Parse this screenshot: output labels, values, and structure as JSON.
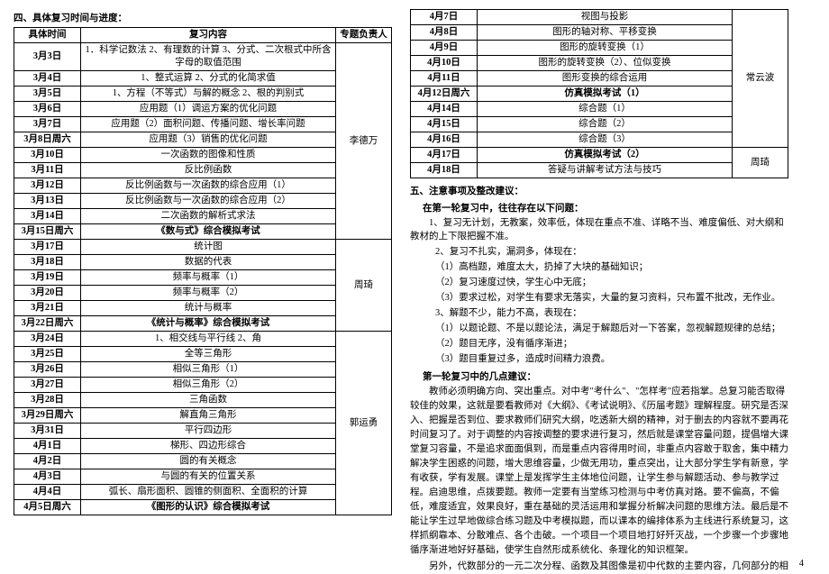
{
  "section4_title": "四、具体复习时间与进度：",
  "table_headers": {
    "date": "具体时间",
    "content": "复习内容",
    "owner": "专题负责人"
  },
  "tableA_owners": [
    "李德万",
    "周琦",
    "郭运勇"
  ],
  "tableA_o1": [
    {
      "d": "3月3日",
      "c": "1．科学记数法 2、有理数的计算 3、分式、二次根式中所含字母的取值范围",
      "b": false
    },
    {
      "d": "3月4日",
      "c": "1、整式运算 2、分式的化简求值",
      "b": false
    },
    {
      "d": "3月5日",
      "c": "1、方程（不等式）与解的概念 2、根的判别式",
      "b": false
    },
    {
      "d": "3月6日",
      "c": "应用题（1）调运方案的优化问题",
      "b": false
    },
    {
      "d": "3月7日",
      "c": "应用题（2）面积问题、传播问题、增长率问题",
      "b": false
    },
    {
      "d": "3月8日周六",
      "c": "应用题（3）销售的优化问题",
      "b": false
    },
    {
      "d": "3月10日",
      "c": "一次函数的图像和性质",
      "b": false
    },
    {
      "d": "3月11日",
      "c": "反比例函数",
      "b": false
    },
    {
      "d": "3月12日",
      "c": "反比例函数与一次函数的综合应用（1）",
      "b": false
    },
    {
      "d": "3月13日",
      "c": "反比例函数与一次函数的综合应用（2）",
      "b": false
    },
    {
      "d": "3月14日",
      "c": "二次函数的解析式求法",
      "b": false
    },
    {
      "d": "3月15日周六",
      "c": "《数与式》综合模拟考试",
      "b": true
    }
  ],
  "tableA_o2": [
    {
      "d": "3月17日",
      "c": "统计图",
      "b": false
    },
    {
      "d": "3月18日",
      "c": "数据的代表",
      "b": false
    },
    {
      "d": "3月19日",
      "c": "频率与概率（1）",
      "b": false
    },
    {
      "d": "3月20日",
      "c": "频率与概率（2）",
      "b": false
    },
    {
      "d": "3月21日",
      "c": "统计与概率",
      "b": false
    },
    {
      "d": "3月22日周六",
      "c": "《统计与概率》综合模拟考试",
      "b": true
    }
  ],
  "tableA_o3": [
    {
      "d": "3月24日",
      "c": "1、相交线与平行线 2、角",
      "b": false
    },
    {
      "d": "3月25日",
      "c": "全等三角形",
      "b": false
    },
    {
      "d": "3月26日",
      "c": "相似三角形（1）",
      "b": false
    },
    {
      "d": "3月27日",
      "c": "相似三角形（2）",
      "b": false
    },
    {
      "d": "3月28日",
      "c": "三角函数",
      "b": false
    },
    {
      "d": "3月29日周六",
      "c": "解直角三角形",
      "b": false
    },
    {
      "d": "3月31日",
      "c": "平行四边形",
      "b": false
    },
    {
      "d": "4月1日",
      "c": "梯形、四边形综合",
      "b": false
    },
    {
      "d": "4月2日",
      "c": "圆的有关概念",
      "b": false
    },
    {
      "d": "4月3日",
      "c": "与圆的有关的位置关系",
      "b": false
    },
    {
      "d": "4月4日",
      "c": "弧长、扇形面积、圆锥的侧面积、全面积的计算",
      "b": false
    },
    {
      "d": "4月5日周六",
      "c": "《图形的认识》综合模拟考试",
      "b": true
    }
  ],
  "tableB_owners": [
    "常云波",
    "周琦"
  ],
  "tableB_o1": [
    {
      "d": "4月7日",
      "c": "视图与投影",
      "b": false
    },
    {
      "d": "4月8日",
      "c": "图形的轴对称、平移变换",
      "b": false
    },
    {
      "d": "4月9日",
      "c": "图形的旋转变换（1）",
      "b": false
    },
    {
      "d": "4月10日",
      "c": "图形的旋转变换（2）、位似变换",
      "b": false
    },
    {
      "d": "4月11日",
      "c": "图形变换的综合运用",
      "b": false
    },
    {
      "d": "4月12日周六",
      "c": "仿真模拟考试（1）",
      "b": true
    },
    {
      "d": "4月14日",
      "c": "综合题（1）",
      "b": false
    },
    {
      "d": "4月15日",
      "c": "综合题（2）",
      "b": false
    },
    {
      "d": "4月16日",
      "c": "综合题（3）",
      "b": false
    }
  ],
  "tableB_o2": [
    {
      "d": "4月17日",
      "c": "仿真模拟考试（2）",
      "b": true
    },
    {
      "d": "4月18日",
      "c": "答疑与讲解考试方法与技巧",
      "b": false
    }
  ],
  "section5_title": "五、注意事项及整改建议：",
  "sub1_title": "在第一轮复习中，往往存在以下问题：",
  "problems": [
    "1、复习无计划，无教案，效率低，体现在重点不准、详略不当、难度偏低、对大纲和教材的上下限把握不准。",
    "2、复习不扎实，漏洞多，体现在：",
    "（1）高档题，难度太大，扔掉了大块的基础知识；",
    "（2）复习速度过快，学生心中无底；",
    "（3）要求过松，对学生有要求无落实，大量的复习资料，只布置不批改，无作业。",
    "3、解题不少，能力不高，表现在：",
    "（1）以题论题、不是以题论法，满足于解题后对一下答案，忽视解题规律的总结；",
    "（2）题目无序，没有循序渐进；",
    "（3）题目重复过多，造成时间精力浪费。"
  ],
  "sub2_title": "第一轮复习中的几点建议：",
  "paras": [
    "教师必须明确方向、突出重点。对中考\"考什么\"、\"怎样考\"应若指掌。总复习能否取得较佳的效果，这就是要看教师对《大纲》、《考试说明》、《历届考题》理解程度。研究是否深入、把握是否到位、要求教师们研究大纲，吃透新大纲的精神，对于删去的内容就不要再花时间复习了。对于调整的内容按调整的要求进行复习，然后就是课堂容量问题，提倡增大课堂复习容量，不是追求面面俱到，而是重点内容得用时间，非重点内容敢于取舍，集中精力解决学生困惑的问题，增大思维容量，少做无用功，重点突出，让大部分学生学有新意，学有收获，学有发展。课堂上是发挥学生主体地位问题，让学生参与解题活动、参与教学过程。启迪思维，点拨要题。教师一定要有当堂练习检测与中考仿真对路。要不偏高，不偏低，难度适宜，效果良好，重在基础的灵活运用和掌握分析解决问题的思维方法。最后是不能让学生过早地做综合练习题及中考模拟题，而以课本的编排体系为主线进行系统复习，这样抓纲靠本、分散难点、各个击破。一个项目一个项目地打好歼灭战，一个步骤一个步骤地循序渐进地好好基础，使学生自然形成系统化、条理化的知识框架。",
    "另外，代数部分的一元二次分程、函数及其图像是初中代数的主要内容，几何部分的相似"
  ],
  "page_number": "4"
}
